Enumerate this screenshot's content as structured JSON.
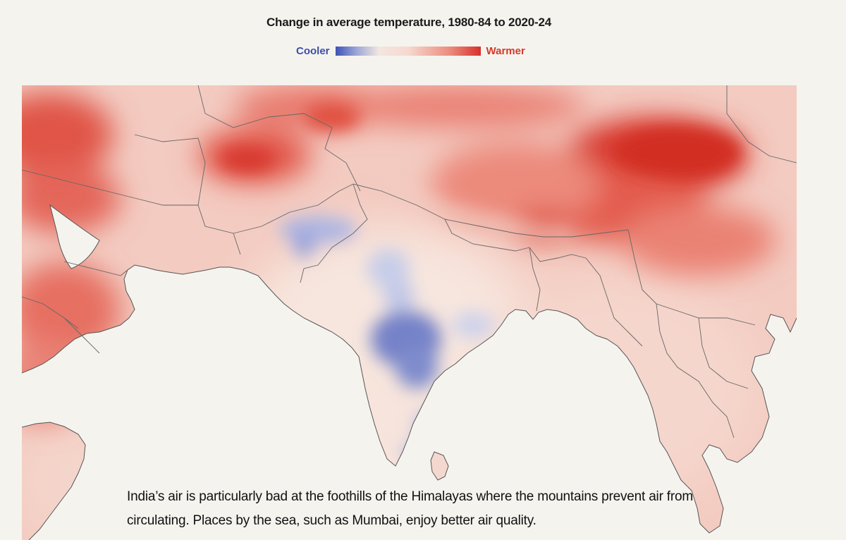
{
  "header": {
    "title": "Change in average temperature, 1980-84 to 2020-24"
  },
  "legend": {
    "cool_label": "Cooler",
    "warm_label": "Warmer",
    "cool_color": "#3d52b6",
    "neutral_color": "#f6e4dc",
    "warm_color": "#d8302a"
  },
  "map": {
    "type": "choropleth-raster",
    "region": "South Asia and surrounding regions",
    "colors": {
      "land_base": "#f4cfc6",
      "ocean": "#f5f3ee",
      "border": "#5a5a5a"
    }
  },
  "caption": {
    "text": "India’s air is particularly bad at the foothills of the Himalayas where the mountains prevent air from circulating. Places by the sea, such as Mumbai, enjoy better air quality."
  }
}
